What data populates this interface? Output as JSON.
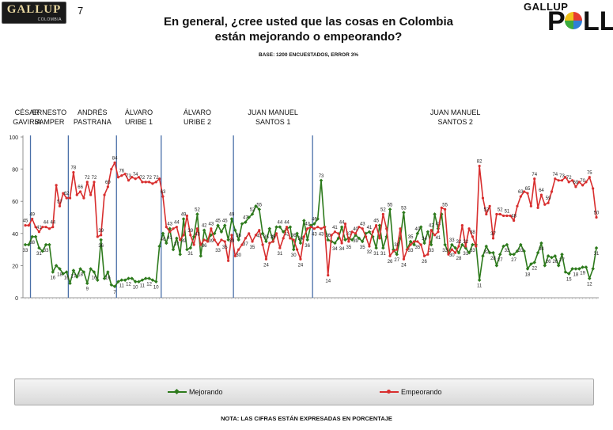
{
  "header": {
    "logo_left": "GALLUP",
    "logo_left_sub": "COLOMBIA",
    "page_number": "7",
    "title_line1": "En general, ¿cree usted que las cosas en Colombia",
    "title_line2": "están mejorando o empeorando?",
    "base": "BASE: 1200 ENCUESTADOS, ERROR 3%",
    "logo_right_top": "GALLUP",
    "logo_right_bottom": "POLL"
  },
  "periods": [
    {
      "line1": "CÉSAR",
      "line2": "GAVIRIA"
    },
    {
      "line1": "ERNESTO",
      "line2": "SAMPER"
    },
    {
      "line1": "ANDRÉS",
      "line2": "PASTRANA"
    },
    {
      "line1": "ÁLVARO",
      "line2": "URIBE 1"
    },
    {
      "line1": "ÁLVARO",
      "line2": "URIBE 2"
    },
    {
      "line1": "JUAN MANUEL",
      "line2": "SANTOS 1"
    },
    {
      "line1": "JUAN MANUEL",
      "line2": "SANTOS 2"
    }
  ],
  "legend": {
    "series1": "Mejorando",
    "series2": "Empeorando"
  },
  "note": "NOTA: LAS CIFRAS ESTÁN EXPRESADAS EN PORCENTAJE",
  "colors": {
    "mejorando": "#2d7a1c",
    "empeorando": "#d82e2e",
    "divider": "#4a6fa8"
  },
  "chart_data": {
    "type": "line",
    "ylim": [
      0,
      100
    ],
    "yticks": [
      0,
      20,
      40,
      60,
      80,
      100
    ],
    "period_breaks": [
      2,
      13,
      27,
      40,
      61,
      84
    ],
    "series": [
      {
        "name": "Mejorando",
        "values": [
          33,
          33,
          38,
          38,
          31,
          29,
          33,
          33,
          16,
          20,
          18,
          15,
          16,
          9,
          17,
          13,
          18,
          16,
          9,
          18,
          16,
          11,
          36,
          12,
          16,
          8,
          7,
          10,
          11,
          11,
          12,
          12,
          10,
          10,
          11,
          12,
          12,
          11,
          10,
          32,
          40,
          34,
          43,
          30,
          37,
          27,
          49,
          30,
          31,
          38,
          52,
          26,
          42,
          36,
          39,
          40,
          45,
          41,
          45,
          36,
          49,
          42,
          36,
          46,
          47,
          50,
          52,
          57,
          55,
          40,
          35,
          43,
          35,
          44,
          44,
          41,
          43,
          44,
          30,
          40,
          34,
          48,
          36,
          45,
          46,
          49,
          73,
          44,
          36,
          35,
          34,
          37,
          44,
          36,
          37,
          36,
          39,
          37,
          35,
          40,
          41,
          38,
          31,
          45,
          31,
          38,
          55,
          30,
          27,
          37,
          53,
          30,
          35,
          33,
          40,
          44,
          34,
          41,
          33,
          52,
          43,
          52,
          33,
          28,
          33,
          31,
          28,
          33,
          31,
          28,
          33,
          33,
          11,
          26,
          32,
          28,
          28,
          20,
          27,
          32,
          33,
          27,
          27,
          29,
          33,
          29,
          18,
          21,
          22,
          28,
          34,
          20,
          26,
          25,
          26,
          20,
          27,
          16,
          15,
          18,
          18,
          18,
          19,
          19,
          12,
          18,
          31
        ]
      },
      {
        "name": "Empeorando",
        "values": [
          45,
          45,
          49,
          44,
          41,
          44,
          44,
          43,
          44,
          70,
          57,
          65,
          62,
          62,
          78,
          64,
          66,
          62,
          72,
          64,
          72,
          38,
          39,
          64,
          69,
          80,
          84,
          75,
          76,
          77,
          73,
          75,
          74,
          75,
          72,
          72,
          72,
          71,
          72,
          74,
          63,
          44,
          41,
          43,
          44,
          36,
          39,
          51,
          39,
          33,
          43,
          33,
          36,
          35,
          43,
          36,
          33,
          36,
          35,
          23,
          39,
          26,
          30,
          33,
          37,
          40,
          35,
          39,
          42,
          33,
          24,
          34,
          35,
          40,
          31,
          37,
          44,
          37,
          36,
          30,
          24,
          38,
          43,
          44,
          43,
          44,
          43,
          44,
          14,
          39,
          41,
          40,
          34,
          46,
          35,
          41,
          40,
          44,
          43,
          38,
          32,
          41,
          45,
          37,
          52,
          43,
          26,
          29,
          30,
          43,
          24,
          30,
          33,
          35,
          35,
          33,
          26,
          27,
          42,
          39,
          41,
          56,
          55,
          27,
          30,
          28,
          32,
          45,
          32,
          43,
          38,
          32,
          82,
          62,
          52,
          57,
          37,
          52,
          52,
          51,
          51,
          51,
          48,
          57,
          63,
          66,
          65,
          57,
          74,
          56,
          64,
          58,
          59,
          66,
          74,
          73,
          73,
          75,
          72,
          73,
          69,
          72,
          70,
          72,
          75,
          68,
          50
        ]
      }
    ]
  }
}
